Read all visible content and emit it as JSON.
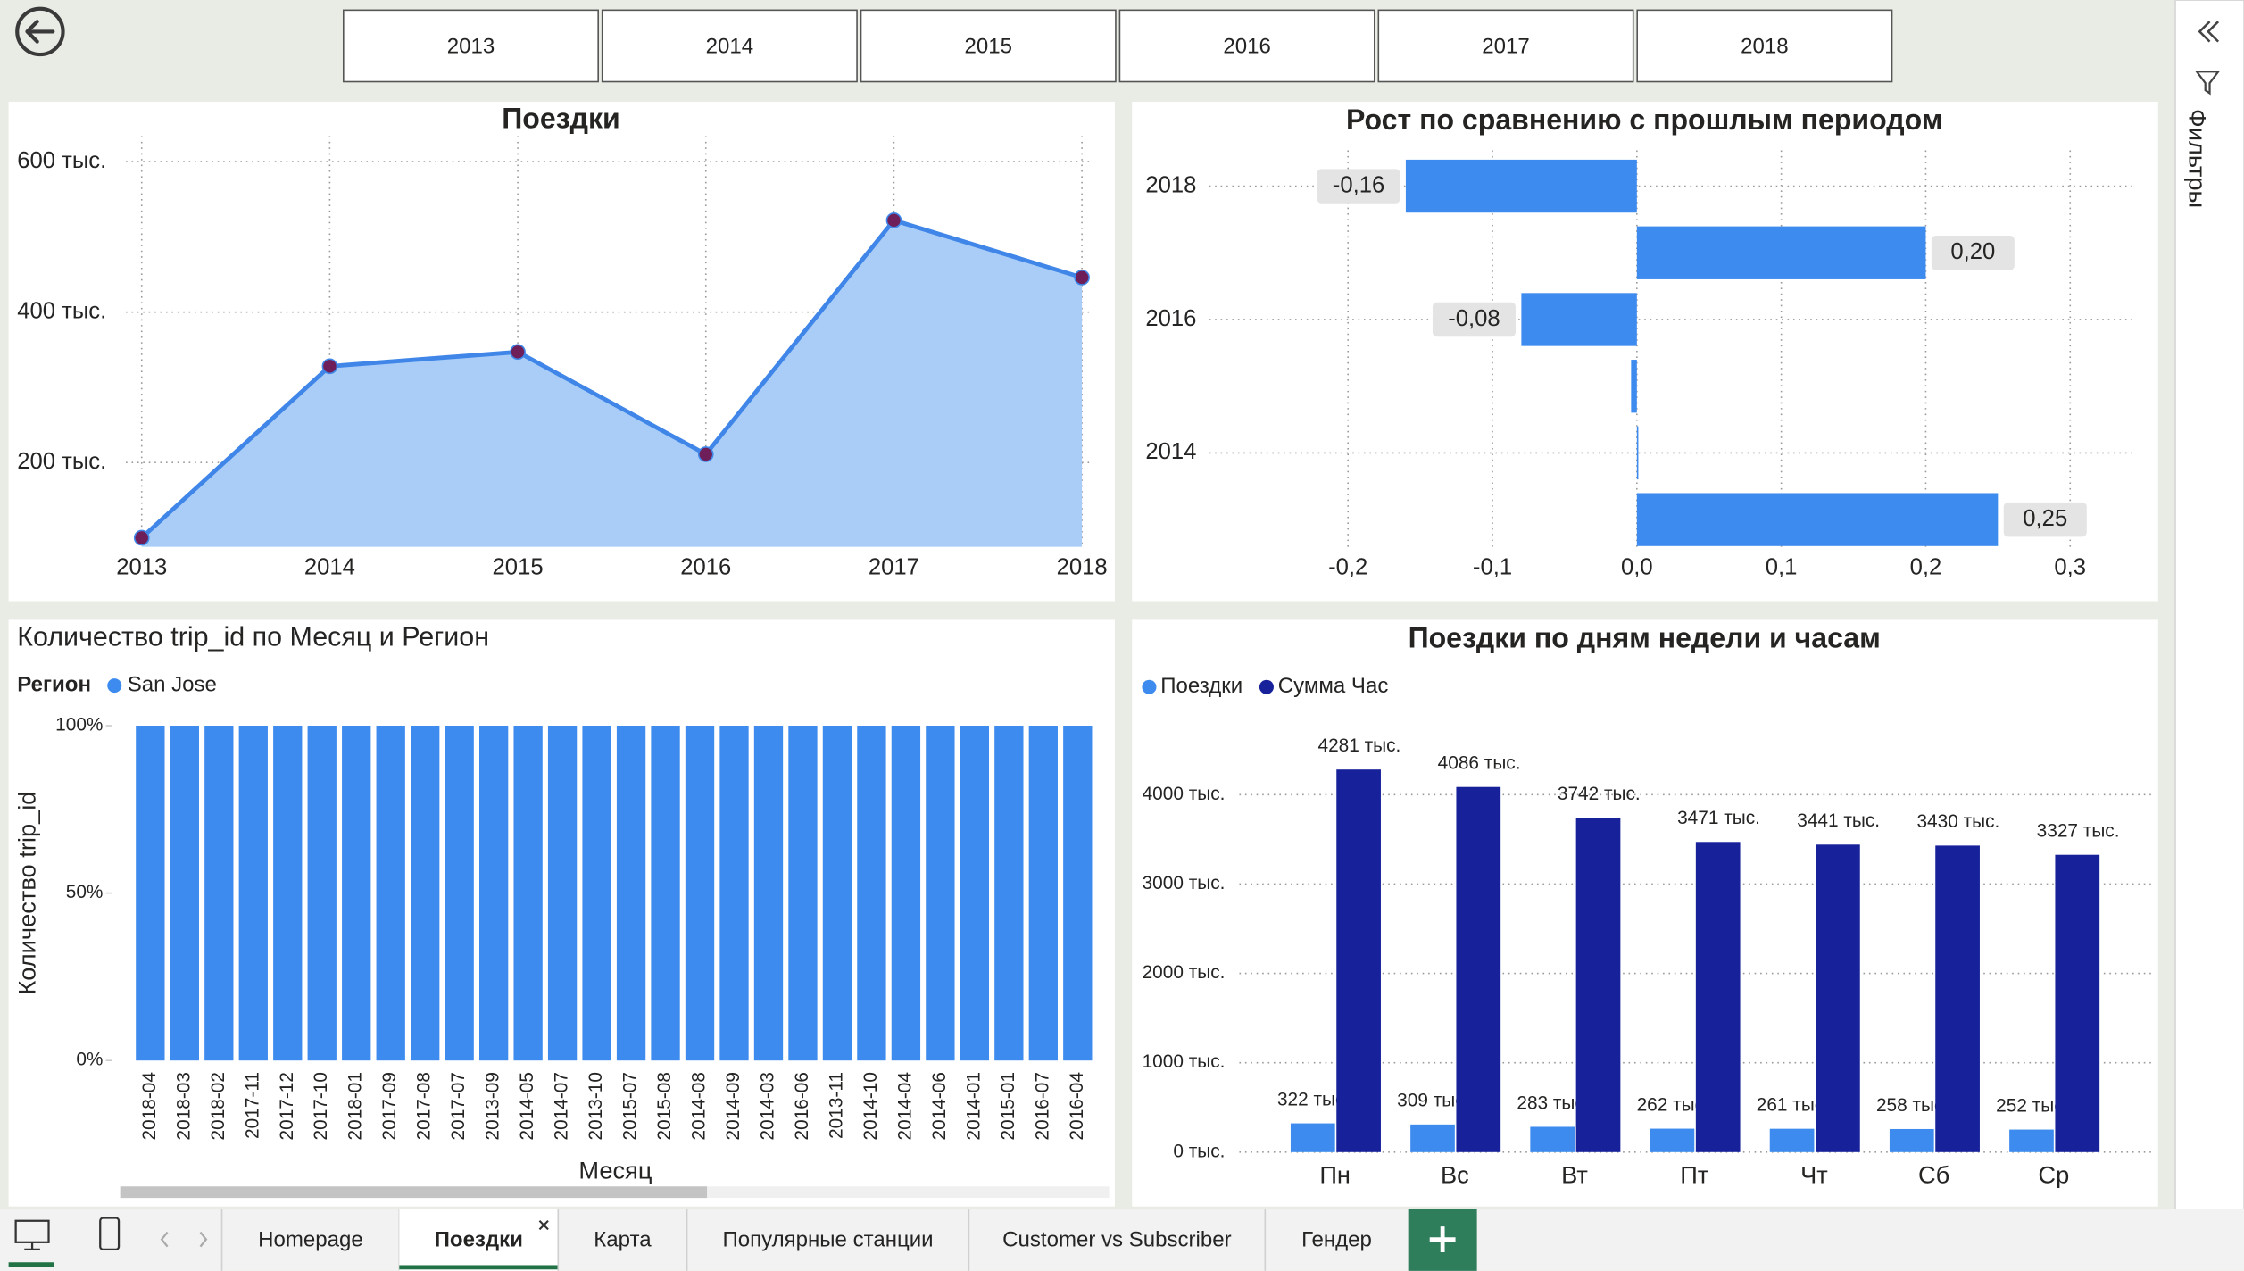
{
  "year_buttons": [
    "2013",
    "2014",
    "2015",
    "2016",
    "2017",
    "2018"
  ],
  "filter_pane": {
    "label": "Фильтры"
  },
  "tabs": [
    "Homepage",
    "Поездки",
    "Карта",
    "Популярные станции",
    "Customer vs Subscriber",
    "Гендер"
  ],
  "chart_data": [
    {
      "type": "area",
      "title": "Поездки",
      "categories": [
        "2013",
        "2014",
        "2015",
        "2016",
        "2017",
        "2018"
      ],
      "values": [
        100000,
        328000,
        347000,
        211000,
        522000,
        446000
      ],
      "color": "#3f86e8",
      "fill_color": "#a9cdf7",
      "marker_color": "#6e1f5a",
      "ylim": [
        88000,
        634000
      ],
      "yticks": [
        {
          "value": 200000,
          "label": "200 тыс."
        },
        {
          "value": 400000,
          "label": "400 тыс."
        },
        {
          "value": 600000,
          "label": "600 тыс."
        }
      ],
      "grid": true
    },
    {
      "type": "hbar",
      "title": "Рост по сравнению с прошлым периодом",
      "categories": [
        "2018",
        null,
        "2016",
        null,
        "2014",
        null
      ],
      "values": [
        -0.16,
        0.2,
        -0.08,
        -0.004,
        0.001,
        0.25
      ],
      "value_labels": [
        "-0,16",
        "0,20",
        "-0,08",
        null,
        null,
        "0,25"
      ],
      "color": "#3d8bef",
      "xlim": [
        -0.3,
        0.35
      ],
      "xticks": [
        {
          "value": -0.2,
          "label": "-0,2"
        },
        {
          "value": -0.1,
          "label": "-0,1"
        },
        {
          "value": 0,
          "label": "0,0"
        },
        {
          "value": 0.1,
          "label": "0,1"
        },
        {
          "value": 0.2,
          "label": "0,2"
        },
        {
          "value": 0.3,
          "label": "0,3"
        }
      ],
      "grid": true
    },
    {
      "type": "stacked100",
      "title": "Количество trip_id по Месяц и Регион",
      "legend_title": "Регион",
      "x_label": "Месяц",
      "y_label": "Количество trip_id",
      "categories": [
        "2018-04",
        "2018-03",
        "2018-02",
        "2017-11",
        "2017-12",
        "2017-10",
        "2018-01",
        "2017-09",
        "2017-08",
        "2017-07",
        "2013-09",
        "2014-05",
        "2014-07",
        "2013-10",
        "2015-07",
        "2015-08",
        "2014-08",
        "2014-09",
        "2014-03",
        "2016-06",
        "2013-11",
        "2014-10",
        "2014-04",
        "2014-06",
        "2014-01",
        "2015-01",
        "2016-07",
        "2016-04"
      ],
      "series": [
        {
          "name": "San Jose",
          "color": "#3d8bef",
          "values": [
            100,
            100,
            100,
            100,
            100,
            100,
            100,
            100,
            100,
            100,
            100,
            100,
            100,
            100,
            100,
            100,
            100,
            100,
            100,
            100,
            100,
            100,
            100,
            100,
            100,
            100,
            100,
            100
          ]
        }
      ],
      "ylim": [
        0,
        100
      ],
      "yticks": [
        {
          "value": 0,
          "label": "0%"
        },
        {
          "value": 50,
          "label": "50%"
        },
        {
          "value": 100,
          "label": "100%"
        }
      ]
    },
    {
      "type": "clustered",
      "title": "Поездки по дням недели и часам",
      "categories": [
        "Пн",
        "Вс",
        "Вт",
        "Пт",
        "Чт",
        "Сб",
        "Ср"
      ],
      "series": [
        {
          "name": "Поездки",
          "color": "#3d8bef",
          "values": [
            322000,
            309000,
            283000,
            262000,
            261000,
            258000,
            252000
          ],
          "value_labels": [
            "322 тыс.",
            "309 тыс.",
            "283 тыс.",
            "262 тыс.",
            "261 тыс.",
            "258 тыс.",
            "252 тыс."
          ]
        },
        {
          "name": "Сумма Час",
          "color": "#17219a",
          "values": [
            4281000,
            4086000,
            3742000,
            3471000,
            3441000,
            3430000,
            3327000
          ],
          "value_labels": [
            "4281 тыс.",
            "4086 тыс.",
            "3742 тыс.",
            "3471 тыс.",
            "3441 тыс.",
            "3430 тыс.",
            "3327 тыс."
          ]
        }
      ],
      "ylim": [
        0,
        4500000
      ],
      "yticks": [
        {
          "value": 0,
          "label": "0 тыс."
        },
        {
          "value": 1000000,
          "label": "1000 тыс."
        },
        {
          "value": 2000000,
          "label": "2000 тыс."
        },
        {
          "value": 3000000,
          "label": "3000 тыс."
        },
        {
          "value": 4000000,
          "label": "4000 тыс."
        }
      ],
      "grid": true
    }
  ]
}
